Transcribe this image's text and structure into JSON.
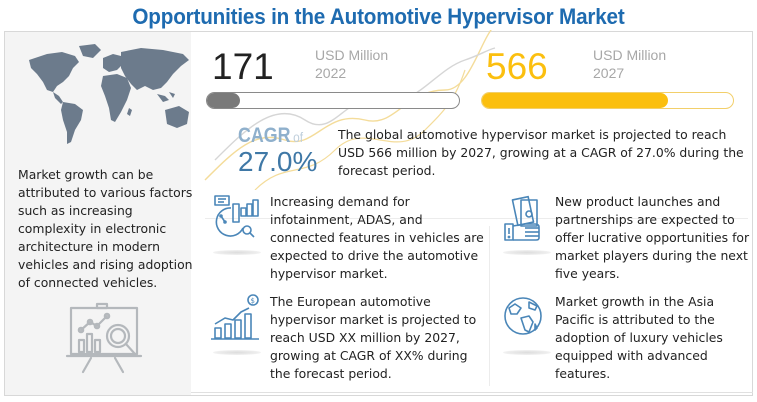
{
  "title": "Opportunities in the Automotive Hypervisor Market",
  "colors": {
    "title": "#1e6bb0",
    "accent_yellow": "#fbbf0f",
    "bar_gray": "#7a7a7a",
    "cagr_blue": "#3f78a6",
    "icon_blue": "#4a86b8",
    "map_gray": "#6c7b8c"
  },
  "left_panel": {
    "map_icon": "world-map-icon",
    "text": "Market growth can be attributed to various factors such as increasing complexity in electronic architecture in modern vehicles and rising adoption of connected vehicles.",
    "bottom_icon": "presentation-analytics-icon"
  },
  "stats": [
    {
      "value": "171",
      "unit": "USD Million",
      "year": "2022",
      "bar_percent": 13
    },
    {
      "value": "566",
      "unit": "USD Million",
      "year": "2027",
      "bar_percent": 74
    }
  ],
  "cagr": {
    "label": "CAGR",
    "of": "of",
    "value": "27.0%",
    "summary": "The global automotive hypervisor market is projected to reach USD 566 million by 2027, growing at a CAGR of 27.0% during the forecast period."
  },
  "points": [
    {
      "icon": "analytics-chart-icon",
      "text": "Increasing demand for infotainment, ADAS, and connected features in vehicles are expected to drive the automotive hypervisor market."
    },
    {
      "icon": "money-hand-icon",
      "text": "New product launches and partnerships are expected to offer lucrative opportunities for market players during the next five years."
    },
    {
      "icon": "growth-bar-chart-icon",
      "text": "The European automotive hypervisor market is projected to reach USD XX million by 2027, growing at CAGR of XX% during the forecast period."
    },
    {
      "icon": "globe-icon",
      "text": "Market growth in the Asia Pacific is attributed to the adoption of luxury vehicles equipped with advanced features."
    }
  ]
}
